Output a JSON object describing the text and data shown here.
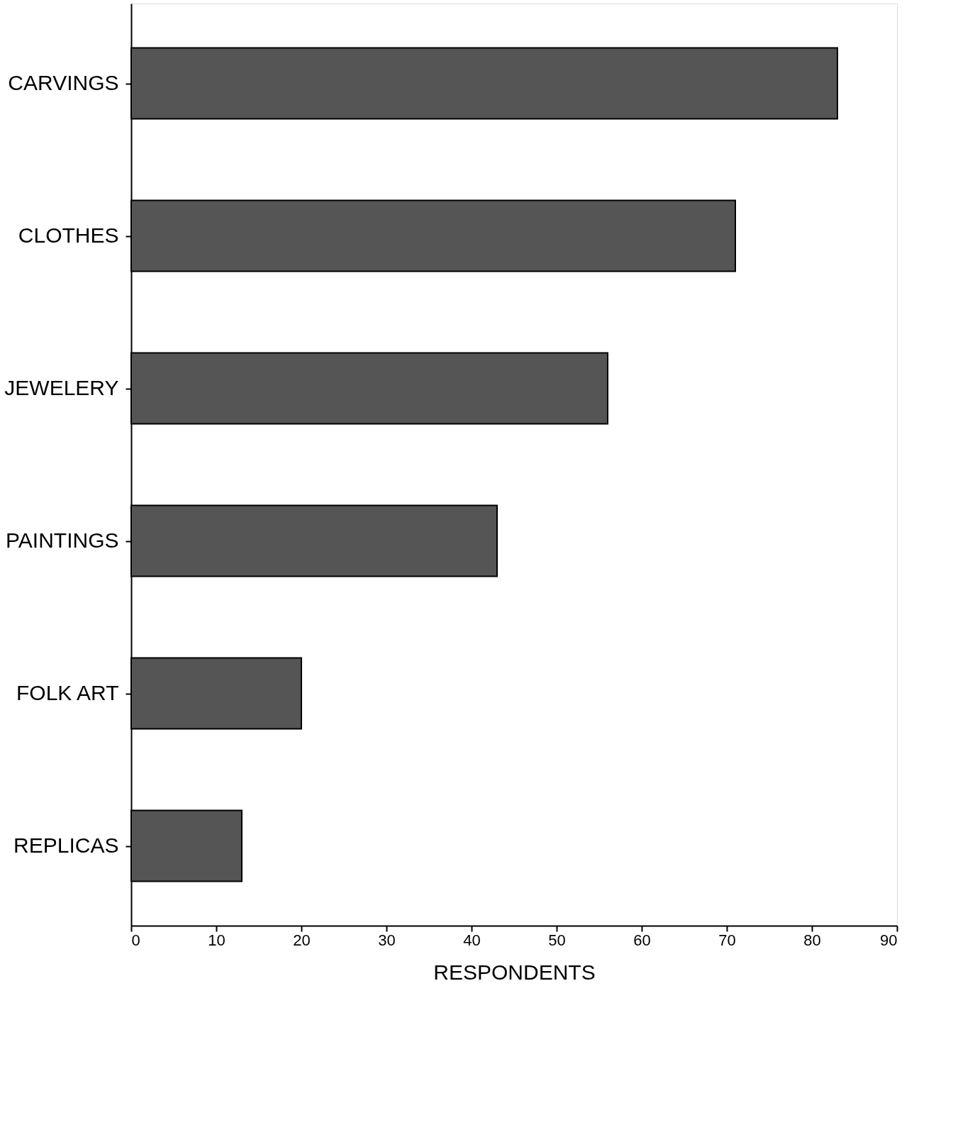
{
  "chart_data": {
    "type": "bar",
    "orientation": "horizontal",
    "xlabel": "RESPONDENTS",
    "categories": [
      "CARVINGS",
      "CLOTHES",
      "JEWELERY",
      "PAINTINGS",
      "FOLK ART",
      "REPLICAS"
    ],
    "values": [
      83,
      71,
      56,
      43,
      20,
      13
    ],
    "color": "#555555",
    "xlim": [
      0,
      90
    ],
    "xticks": [
      0,
      10,
      20,
      30,
      40,
      50,
      60,
      70,
      80,
      90
    ],
    "grid": false
  }
}
